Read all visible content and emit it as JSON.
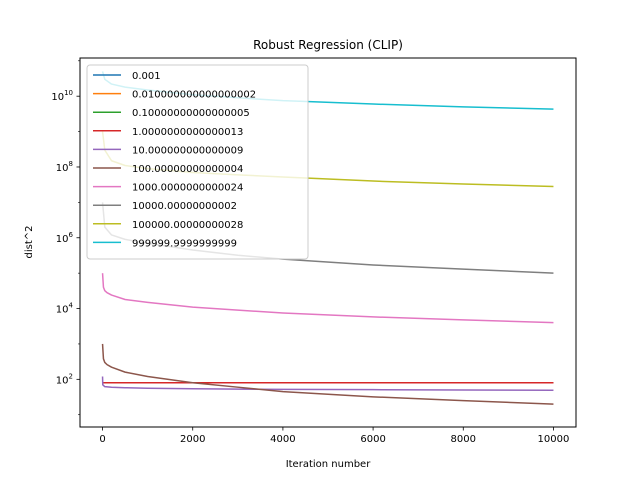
{
  "chart_data": {
    "type": "line",
    "title": "Robust Regression (CLIP)",
    "xlabel": "Iteration number",
    "ylabel": "dist^2",
    "yscale": "log",
    "xlim": [
      -500,
      10500
    ],
    "ylim": [
      4.5,
      120000000000
    ],
    "xticks": [
      0,
      2000,
      4000,
      6000,
      8000,
      10000
    ],
    "xtick_labels": [
      "0",
      "2000",
      "4000",
      "6000",
      "8000",
      "10000"
    ],
    "yticks": [
      100,
      10000,
      1000000,
      100000000,
      10000000000
    ],
    "ytick_labels": [
      {
        "base": "10",
        "exp": "2"
      },
      {
        "base": "10",
        "exp": "4"
      },
      {
        "base": "10",
        "exp": "6"
      },
      {
        "base": "10",
        "exp": "8"
      },
      {
        "base": "10",
        "exp": "10"
      }
    ],
    "grid": false,
    "legend_position": "top-left",
    "series": [
      {
        "name": "0.001",
        "color": "#1f77b4",
        "x": [
          0,
          10000
        ],
        "y": [
          80,
          80
        ]
      },
      {
        "name": "0.010000000000000002",
        "color": "#ff7f0e",
        "x": [
          0,
          10000
        ],
        "y": [
          80,
          80
        ]
      },
      {
        "name": "0.10000000000000005",
        "color": "#2ca02c",
        "x": [
          0,
          10000
        ],
        "y": [
          80,
          80
        ]
      },
      {
        "name": "1.0000000000000013",
        "color": "#d62728",
        "x": [
          0,
          10000
        ],
        "y": [
          80,
          80
        ]
      },
      {
        "name": "10.000000000000009",
        "color": "#9467bd",
        "x": [
          0,
          5,
          50,
          200,
          500,
          1000,
          2000,
          4000,
          6000,
          8000,
          10000
        ],
        "y": [
          120,
          70,
          62,
          60,
          58,
          56,
          54,
          52,
          51,
          50,
          49
        ]
      },
      {
        "name": "100.00000000000004",
        "color": "#8c564b",
        "x": [
          0,
          20,
          50,
          100,
          200,
          500,
          1000,
          2000,
          3000,
          4000,
          6000,
          8000,
          10000
        ],
        "y": [
          1000,
          380,
          300,
          260,
          220,
          160,
          120,
          80,
          60,
          45,
          32,
          25,
          20
        ]
      },
      {
        "name": "1000.0000000000024",
        "color": "#e377c2",
        "x": [
          0,
          20,
          50,
          100,
          200,
          500,
          1000,
          2000,
          3000,
          4000,
          6000,
          8000,
          10000
        ],
        "y": [
          100000,
          40000,
          32000,
          28000,
          24000,
          18000,
          15000,
          11000,
          9000,
          7500,
          5800,
          4800,
          4000
        ]
      },
      {
        "name": "10000.00000000002",
        "color": "#7f7f7f",
        "x": [
          0,
          50,
          200,
          500,
          1000,
          2000,
          3000,
          4000,
          6000,
          8000,
          10000
        ],
        "y": [
          10000000,
          2000000,
          1200000,
          900000,
          700000,
          450000,
          320000,
          250000,
          170000,
          130000,
          100000
        ]
      },
      {
        "name": "100000.00000000028",
        "color": "#bcbd22",
        "x": [
          0,
          50,
          200,
          500,
          1000,
          2000,
          3000,
          4000,
          6000,
          8000,
          10000
        ],
        "y": [
          1000000000,
          300000000,
          150000000,
          110000000,
          90000000,
          70000000,
          60000000,
          52000000,
          40000000,
          33000000,
          28000000
        ]
      },
      {
        "name": "999999.9999999999",
        "color": "#17becf",
        "x": [
          0,
          50,
          200,
          500,
          1000,
          2000,
          3000,
          4000,
          6000,
          8000,
          10000
        ],
        "y": [
          50000000000,
          30000000000,
          22000000000,
          18000000000,
          15000000000,
          11000000000,
          9000000000,
          7500000000,
          6000000000,
          5000000000,
          4300000000
        ]
      }
    ]
  }
}
